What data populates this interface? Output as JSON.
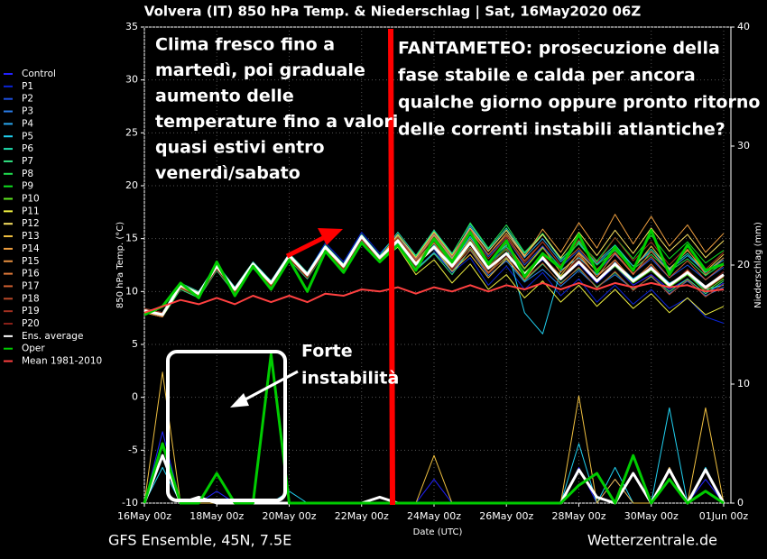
{
  "chart_data": {
    "type": "line",
    "title": "Volvera  (IT)  850 hPa Temp. & Niederschlag | Sat, 16May2020 06Z",
    "ylabel": "850 hPa Temp. (°C)",
    "y2label": "Niederschlag (mm)",
    "xlabel": "Date (UTC)",
    "footer_left": "GFS Ensemble, 45N, 7.5E",
    "footer_right": "Wetterzentrale.de",
    "xlim": [
      0,
      16.2
    ],
    "ylim": [
      -10,
      35
    ],
    "y2lim": [
      0,
      40
    ],
    "grid": true,
    "xticks": [
      {
        "value": 0,
        "label": "16May 00z"
      },
      {
        "value": 2,
        "label": "18May 00z"
      },
      {
        "value": 4,
        "label": "20May 00z"
      },
      {
        "value": 6,
        "label": "22May 00z"
      },
      {
        "value": 8,
        "label": "24May 00z"
      },
      {
        "value": 10,
        "label": "26May 00z"
      },
      {
        "value": 12,
        "label": "28May 00z"
      },
      {
        "value": 14,
        "label": "30May 00z"
      },
      {
        "value": 16,
        "label": "01Jun 00z"
      }
    ],
    "yticks": [
      -10,
      -5,
      0,
      5,
      10,
      15,
      20,
      25,
      30,
      35
    ],
    "y2ticks": [
      0,
      10,
      20,
      30,
      40
    ],
    "x": [
      0,
      0.5,
      1,
      1.5,
      2,
      2.5,
      3,
      3.5,
      4,
      4.5,
      5,
      5.5,
      6,
      6.5,
      7,
      7.5,
      8,
      8.5,
      9,
      9.5,
      10,
      10.5,
      11,
      11.5,
      12,
      12.5,
      13,
      13.5,
      14,
      14.5,
      15,
      15.5,
      16
    ],
    "series": [
      {
        "name": "Control",
        "color": "#2222ff",
        "values": [
          8.4,
          8.0,
          10.4,
          9.6,
          12.2,
          10.0,
          12.8,
          11.0,
          13.6,
          11.4,
          14.0,
          12.6,
          15.4,
          13.0,
          15.0,
          12.8,
          14.6,
          12.2,
          15.0,
          12.6,
          14.2,
          11.8,
          13.0,
          11.4,
          12.6,
          10.8,
          12.4,
          10.6,
          11.6,
          10.2,
          11.2,
          9.8,
          10.8
        ],
        "precip": [
          0,
          6,
          0,
          0,
          1,
          0,
          0,
          0,
          0,
          0,
          0,
          0,
          0,
          0,
          0,
          0,
          2,
          0,
          0,
          0,
          0,
          0,
          0,
          0,
          3,
          0,
          2,
          0,
          0,
          3,
          0,
          2,
          0
        ]
      },
      {
        "name": "P1",
        "color": "#0a23d6",
        "values": [
          8.0,
          7.6,
          10.8,
          9.8,
          12.6,
          10.4,
          12.4,
          10.6,
          13.2,
          11.8,
          14.6,
          12.8,
          15.6,
          13.6,
          15.4,
          13.0,
          14.0,
          11.8,
          13.2,
          10.6,
          12.4,
          10.2,
          11.8,
          9.6,
          11.2,
          9.0,
          10.6,
          8.8,
          10.2,
          8.4,
          9.4,
          7.6,
          7.0
        ]
      },
      {
        "name": "P2",
        "color": "#1e50e0",
        "values": [
          8.2,
          7.9,
          10.5,
          9.7,
          12.3,
          10.1,
          12.7,
          10.9,
          13.5,
          11.5,
          14.3,
          12.3,
          15.1,
          13.1,
          14.9,
          12.7,
          14.9,
          13.1,
          15.9,
          13.3,
          15.1,
          12.5,
          14.3,
          12.3,
          13.9,
          11.9,
          13.5,
          11.7,
          13.1,
          11.3,
          12.5,
          11.1,
          12.3
        ]
      },
      {
        "name": "P3",
        "color": "#2a7de8",
        "values": [
          8.3,
          7.7,
          10.7,
          9.9,
          12.5,
          10.3,
          12.5,
          10.7,
          13.3,
          11.7,
          14.1,
          12.5,
          15.3,
          13.3,
          14.5,
          12.1,
          13.7,
          11.9,
          13.9,
          11.5,
          12.9,
          10.9,
          12.1,
          10.5,
          12.0,
          10.4,
          11.6,
          10.2,
          11.4,
          9.8,
          11.0,
          9.6,
          10.4
        ]
      },
      {
        "name": "P4",
        "color": "#28a8f0",
        "values": [
          8.1,
          7.8,
          10.6,
          9.8,
          12.4,
          10.2,
          12.6,
          10.8,
          13.4,
          11.6,
          14.2,
          12.4,
          15.2,
          13.2,
          15.2,
          13.0,
          15.4,
          13.2,
          16.2,
          13.8,
          15.8,
          13.2,
          15.0,
          12.8,
          14.6,
          12.6,
          14.2,
          12.4,
          13.8,
          12.0,
          13.4,
          11.8,
          13.0
        ]
      },
      {
        "name": "P5",
        "color": "#20d0f0",
        "values": [
          8.2,
          7.6,
          10.4,
          9.6,
          12.2,
          10.0,
          12.4,
          10.6,
          13.2,
          11.4,
          14.0,
          12.2,
          15.0,
          13.0,
          14.6,
          12.4,
          14.4,
          12.6,
          15.2,
          12.8,
          14.4,
          8.0,
          6.0,
          12.0,
          13.2,
          11.6,
          12.8,
          11.2,
          12.4,
          10.8,
          11.6,
          10.2,
          10.6
        ],
        "precip": [
          0,
          3,
          0,
          0,
          0,
          0,
          0,
          0,
          1,
          0,
          0,
          0,
          0,
          0,
          0,
          0,
          0,
          0,
          0,
          0,
          0,
          0,
          0,
          0,
          5,
          0,
          3,
          0,
          0,
          8,
          0,
          3,
          0
        ]
      },
      {
        "name": "P6",
        "color": "#20e0b0",
        "values": [
          8.4,
          8.0,
          10.8,
          10.0,
          12.6,
          10.4,
          12.8,
          11.0,
          13.6,
          11.8,
          14.4,
          12.6,
          15.4,
          13.4,
          15.6,
          13.4,
          15.8,
          13.6,
          16.4,
          14.0,
          16.0,
          13.6,
          15.4,
          13.0,
          14.8,
          12.8,
          14.4,
          12.4,
          14.0,
          12.2,
          13.6,
          11.8,
          13.2
        ]
      },
      {
        "name": "P7",
        "color": "#30e080",
        "values": [
          8.0,
          7.6,
          10.2,
          9.4,
          12.0,
          9.8,
          12.2,
          10.4,
          13.0,
          11.2,
          13.8,
          12.0,
          14.8,
          12.8,
          14.2,
          12.0,
          13.6,
          11.6,
          14.0,
          11.8,
          13.2,
          11.0,
          12.6,
          10.8,
          12.2,
          10.4,
          11.8,
          10.2,
          11.4,
          10.0,
          11.2,
          9.8,
          11.0
        ]
      },
      {
        "name": "P8",
        "color": "#20e050",
        "values": [
          8.3,
          7.9,
          10.5,
          9.7,
          12.3,
          10.1,
          12.5,
          10.7,
          13.3,
          11.5,
          14.1,
          12.3,
          15.1,
          13.1,
          15.3,
          13.3,
          15.7,
          13.5,
          16.5,
          14.1,
          16.3,
          13.7,
          15.5,
          13.1,
          14.5,
          12.5,
          13.9,
          12.1,
          13.5,
          11.9,
          13.1,
          11.5,
          12.7
        ]
      },
      {
        "name": "P9",
        "color": "#10e020",
        "values": [
          8.1,
          7.7,
          10.3,
          9.5,
          12.1,
          9.9,
          12.3,
          10.5,
          13.1,
          11.3,
          13.9,
          12.1,
          14.9,
          12.9,
          14.7,
          12.5,
          14.1,
          12.1,
          14.5,
          12.3,
          14.3,
          12.1,
          14.1,
          12.3,
          14.7,
          12.9,
          15.1,
          13.1,
          15.3,
          13.1,
          14.7,
          12.7,
          13.9
        ]
      },
      {
        "name": "P10",
        "color": "#60e820",
        "values": [
          8.2,
          7.8,
          10.6,
          9.8,
          12.4,
          10.2,
          12.6,
          10.8,
          13.4,
          11.6,
          14.2,
          12.4,
          15.2,
          13.2,
          15.0,
          12.8,
          14.8,
          12.6,
          14.8,
          12.4,
          14.0,
          11.8,
          13.4,
          11.4,
          12.8,
          11.0,
          12.4,
          10.8,
          12.0,
          10.4,
          11.6,
          10.0,
          11.2
        ]
      },
      {
        "name": "P11",
        "color": "#f0f040",
        "values": [
          8.0,
          7.6,
          10.4,
          9.6,
          12.2,
          10.0,
          12.4,
          10.6,
          13.2,
          11.4,
          14.0,
          12.2,
          15.0,
          13.0,
          14.2,
          11.6,
          13.0,
          10.8,
          12.6,
          10.2,
          11.6,
          9.4,
          11.0,
          9.0,
          10.6,
          8.6,
          10.2,
          8.4,
          9.8,
          8.0,
          9.4,
          7.8,
          8.6
        ]
      },
      {
        "name": "P12",
        "color": "#f8e060",
        "values": [
          8.4,
          8.0,
          10.6,
          9.8,
          12.4,
          10.2,
          12.6,
          10.8,
          13.4,
          11.6,
          14.2,
          12.4,
          15.2,
          13.2,
          15.4,
          13.2,
          15.6,
          13.4,
          16.0,
          13.8,
          15.8,
          13.4,
          15.4,
          13.2,
          15.6,
          13.4,
          15.8,
          13.6,
          16.0,
          13.8,
          15.4,
          13.2,
          14.8
        ]
      },
      {
        "name": "P13",
        "color": "#f0c040",
        "values": [
          8.1,
          7.7,
          10.5,
          9.7,
          12.3,
          10.1,
          12.5,
          10.7,
          13.3,
          11.5,
          14.1,
          12.3,
          15.1,
          13.1,
          14.7,
          12.5,
          14.1,
          11.9,
          13.5,
          11.3,
          13.1,
          11.1,
          13.3,
          11.5,
          13.7,
          11.9,
          14.1,
          12.1,
          14.3,
          12.1,
          13.9,
          11.9,
          13.5
        ],
        "precip": [
          0,
          11,
          0,
          0,
          0,
          0,
          0,
          0,
          0,
          0,
          0,
          0,
          0,
          0,
          0,
          0,
          4,
          0,
          0,
          0,
          0,
          0,
          0,
          0,
          9,
          0,
          2,
          0,
          0,
          3,
          0,
          8,
          0
        ]
      },
      {
        "name": "P14",
        "color": "#f0a040",
        "values": [
          8.3,
          7.9,
          10.7,
          9.9,
          12.5,
          10.3,
          12.7,
          10.9,
          13.5,
          11.7,
          14.3,
          12.5,
          15.3,
          13.3,
          15.1,
          12.9,
          15.3,
          13.1,
          15.7,
          13.5,
          15.5,
          13.3,
          15.9,
          13.7,
          16.5,
          14.1,
          17.3,
          14.5,
          17.1,
          14.3,
          16.3,
          13.7,
          15.5
        ]
      },
      {
        "name": "P15",
        "color": "#e89040",
        "values": [
          8.2,
          7.8,
          10.4,
          9.6,
          12.2,
          10.0,
          12.4,
          10.6,
          13.2,
          11.4,
          14.0,
          12.2,
          15.0,
          13.0,
          14.8,
          12.6,
          14.6,
          12.4,
          15.0,
          12.6,
          14.6,
          12.2,
          14.2,
          11.8,
          13.6,
          11.4,
          13.0,
          11.0,
          12.6,
          10.6,
          12.0,
          10.2,
          11.4
        ]
      },
      {
        "name": "P16",
        "color": "#e07838",
        "values": [
          8.0,
          7.6,
          10.6,
          9.8,
          12.4,
          10.2,
          12.6,
          10.8,
          13.4,
          11.6,
          14.2,
          12.4,
          15.2,
          13.2,
          15.2,
          12.8,
          14.6,
          12.2,
          14.2,
          11.8,
          13.6,
          11.4,
          13.2,
          11.2,
          13.4,
          11.4,
          13.6,
          11.6,
          13.8,
          11.8,
          14.0,
          11.6,
          13.2
        ]
      },
      {
        "name": "P17",
        "color": "#d06030",
        "values": [
          8.3,
          7.9,
          10.3,
          9.5,
          12.1,
          9.9,
          12.3,
          10.5,
          13.1,
          11.3,
          13.9,
          12.1,
          14.9,
          12.9,
          15.1,
          13.1,
          15.5,
          13.3,
          15.9,
          13.5,
          15.3,
          12.9,
          14.7,
          12.5,
          14.1,
          12.1,
          13.7,
          11.7,
          13.3,
          11.3,
          12.9,
          11.1,
          12.5
        ]
      },
      {
        "name": "P18",
        "color": "#b84828",
        "values": [
          8.1,
          7.7,
          10.7,
          9.9,
          12.5,
          10.3,
          12.7,
          10.9,
          13.5,
          11.7,
          14.3,
          12.5,
          15.3,
          13.3,
          14.9,
          12.7,
          14.3,
          12.1,
          13.9,
          11.7,
          13.3,
          11.1,
          12.7,
          10.7,
          12.3,
          10.3,
          11.9,
          10.1,
          11.5,
          9.7,
          11.1,
          9.5,
          10.7
        ]
      },
      {
        "name": "P19",
        "color": "#a03020",
        "values": [
          8.2,
          7.8,
          10.5,
          9.7,
          12.3,
          10.1,
          12.5,
          10.7,
          13.3,
          11.5,
          14.1,
          12.3,
          15.1,
          13.1,
          15.1,
          12.9,
          15.1,
          12.9,
          15.5,
          13.1,
          15.1,
          12.7,
          14.7,
          12.5,
          14.9,
          12.7,
          15.1,
          12.9,
          14.7,
          12.5,
          14.3,
          12.1,
          13.7
        ]
      },
      {
        "name": "P20",
        "color": "#882018",
        "values": [
          8.4,
          8.0,
          10.3,
          9.5,
          12.1,
          9.9,
          12.3,
          10.5,
          13.1,
          11.3,
          13.9,
          12.1,
          14.9,
          12.9,
          14.5,
          12.3,
          14.3,
          12.1,
          14.7,
          12.3,
          14.1,
          11.7,
          13.5,
          11.3,
          13.1,
          11.1,
          12.9,
          10.9,
          12.5,
          10.5,
          12.1,
          10.3,
          11.9
        ]
      },
      {
        "name": "Ens. average",
        "color": "#ffffff",
        "width": 3,
        "values": [
          8.2,
          7.8,
          10.6,
          9.8,
          12.4,
          10.2,
          12.6,
          10.8,
          13.4,
          11.6,
          14.2,
          12.4,
          15.2,
          13.2,
          14.8,
          12.6,
          14.2,
          12.4,
          14.6,
          12.2,
          13.6,
          11.6,
          13.2,
          11.2,
          12.8,
          11.0,
          12.6,
          11.0,
          12.2,
          10.6,
          11.8,
          10.4,
          11.6
        ],
        "precip": [
          0,
          4,
          0,
          0.5,
          0,
          0,
          0,
          0,
          0,
          0,
          0,
          0,
          0,
          0.5,
          0,
          0,
          0,
          0,
          0,
          0,
          0,
          0,
          0,
          0,
          2.8,
          0.5,
          0,
          2.5,
          0,
          2.8,
          0,
          2.8,
          0
        ]
      },
      {
        "name": "Oper",
        "color": "#00cc00",
        "width": 3,
        "values": [
          7.8,
          8.6,
          10.8,
          9.4,
          12.8,
          9.6,
          12.4,
          10.2,
          13.0,
          10.0,
          13.8,
          11.8,
          14.6,
          12.8,
          14.4,
          12.0,
          15.0,
          12.8,
          15.6,
          12.6,
          14.8,
          11.4,
          13.6,
          12.2,
          15.4,
          11.8,
          14.2,
          12.0,
          15.8,
          11.6,
          14.4,
          12.0,
          12.6
        ],
        "precip": [
          0,
          5,
          0,
          0,
          2.5,
          0,
          0,
          12.5,
          0,
          0,
          0,
          0,
          0,
          0,
          0,
          0,
          0,
          0,
          0,
          0,
          0,
          0,
          0,
          0,
          1.5,
          2.5,
          0,
          4,
          0,
          2,
          0,
          1,
          0
        ]
      },
      {
        "name": "Mean 1981-2010",
        "color": "#ff4040",
        "width": 2,
        "values": [
          8.0,
          8.6,
          9.2,
          8.8,
          9.4,
          8.8,
          9.6,
          9.0,
          9.6,
          9.0,
          9.8,
          9.6,
          10.2,
          10.0,
          10.4,
          9.8,
          10.4,
          10.0,
          10.6,
          10.0,
          10.6,
          10.2,
          10.8,
          10.2,
          10.8,
          10.2,
          10.8,
          10.4,
          10.8,
          10.4,
          10.6,
          10.0,
          10.2
        ]
      }
    ],
    "annotations": [
      {
        "lines": [
          "Clima fresco fino a",
          "martedì, poi graduale",
          "aumento delle",
          "temperature fino a valori",
          "quasi estivi entro",
          "venerdì/sabato"
        ]
      },
      {
        "lines": [
          "FANTAMETEO: prosecuzione della",
          "fase stabile e calda per ancora",
          "qualche giorno oppure pronto ritorno",
          "delle correnti instabili atlantiche?"
        ]
      },
      {
        "lines": [
          "Forte",
          "instabilità"
        ]
      }
    ]
  }
}
